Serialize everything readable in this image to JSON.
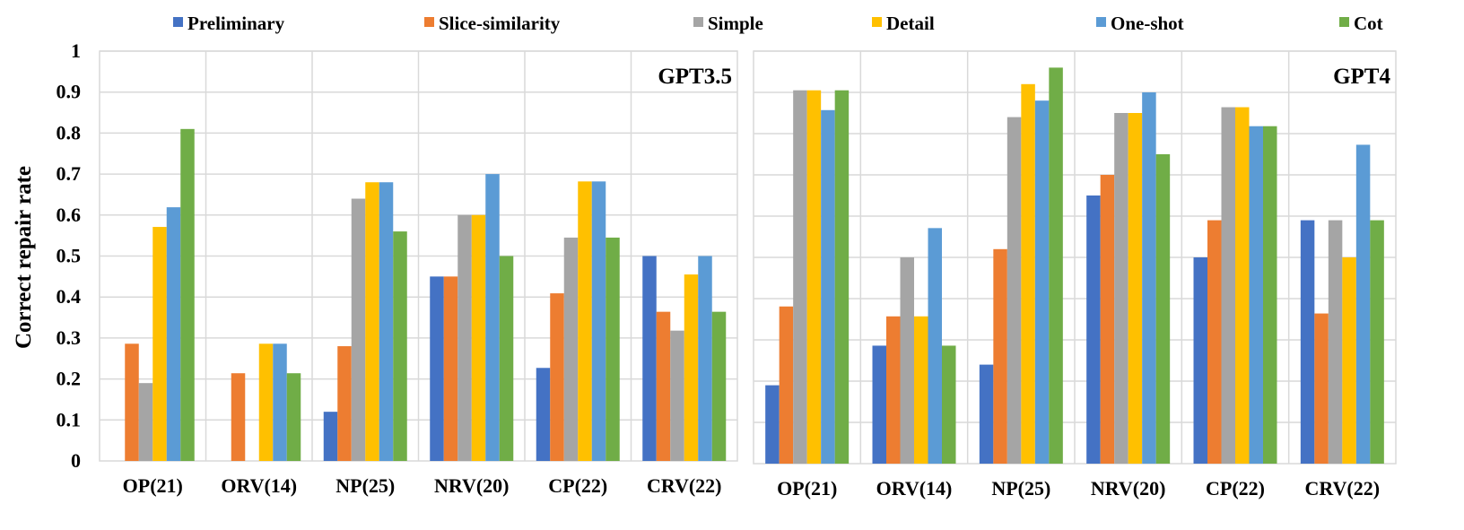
{
  "chart_data": [
    {
      "type": "bar",
      "title": "GPT3.5",
      "ylabel": "Correct repair rate",
      "xlabel": "",
      "ylim": [
        0,
        1
      ],
      "yticks": [
        "0",
        "0.1",
        "0.2",
        "0.3",
        "0.4",
        "0.5",
        "0.6",
        "0.7",
        "0.8",
        "0.9",
        "1"
      ],
      "grid": true,
      "legend": "top",
      "categories": [
        "OP(21)",
        "ORV(14)",
        "NP(25)",
        "NRV(20)",
        "CP(22)",
        "CRV(22)"
      ],
      "series": [
        {
          "name": "Preliminary",
          "color": "#4472C4",
          "values": [
            0,
            0,
            0.12,
            0.45,
            0.227,
            0.5
          ]
        },
        {
          "name": "Slice-similarity",
          "color": "#ED7D31",
          "values": [
            0.286,
            0.214,
            0.28,
            0.45,
            0.409,
            0.364
          ]
        },
        {
          "name": "Simple",
          "color": "#A5A5A5",
          "values": [
            0.19,
            0,
            0.64,
            0.6,
            0.545,
            0.318
          ]
        },
        {
          "name": "Detail",
          "color": "#FFC000",
          "values": [
            0.571,
            0.286,
            0.68,
            0.6,
            0.682,
            0.455
          ]
        },
        {
          "name": "One-shot",
          "color": "#5B9BD5",
          "values": [
            0.619,
            0.286,
            0.68,
            0.7,
            0.682,
            0.5
          ]
        },
        {
          "name": "Cot",
          "color": "#70AD47",
          "values": [
            0.81,
            0.214,
            0.56,
            0.5,
            0.545,
            0.364
          ]
        }
      ]
    },
    {
      "type": "bar",
      "title": "GPT4",
      "ylabel": "",
      "xlabel": "",
      "ylim": [
        0,
        1
      ],
      "grid": true,
      "legend": "top",
      "categories": [
        "OP(21)",
        "ORV(14)",
        "NP(25)",
        "NRV(20)",
        "CP(22)",
        "CRV(22)"
      ],
      "series": [
        {
          "name": "Preliminary",
          "color": "#4472C4",
          "values": [
            0.19,
            0.286,
            0.24,
            0.65,
            0.5,
            0.59
          ]
        },
        {
          "name": "Slice-similarity",
          "color": "#ED7D31",
          "values": [
            0.381,
            0.357,
            0.52,
            0.7,
            0.59,
            0.364
          ]
        },
        {
          "name": "Simple",
          "color": "#A5A5A5",
          "values": [
            0.905,
            0.5,
            0.84,
            0.85,
            0.864,
            0.59
          ]
        },
        {
          "name": "Detail",
          "color": "#FFC000",
          "values": [
            0.905,
            0.357,
            0.92,
            0.85,
            0.864,
            0.5
          ]
        },
        {
          "name": "One-shot",
          "color": "#5B9BD5",
          "values": [
            0.857,
            0.571,
            0.88,
            0.9,
            0.818,
            0.773
          ]
        },
        {
          "name": "Cot",
          "color": "#70AD47",
          "values": [
            0.905,
            0.286,
            0.96,
            0.75,
            0.818,
            0.59
          ]
        }
      ]
    }
  ]
}
